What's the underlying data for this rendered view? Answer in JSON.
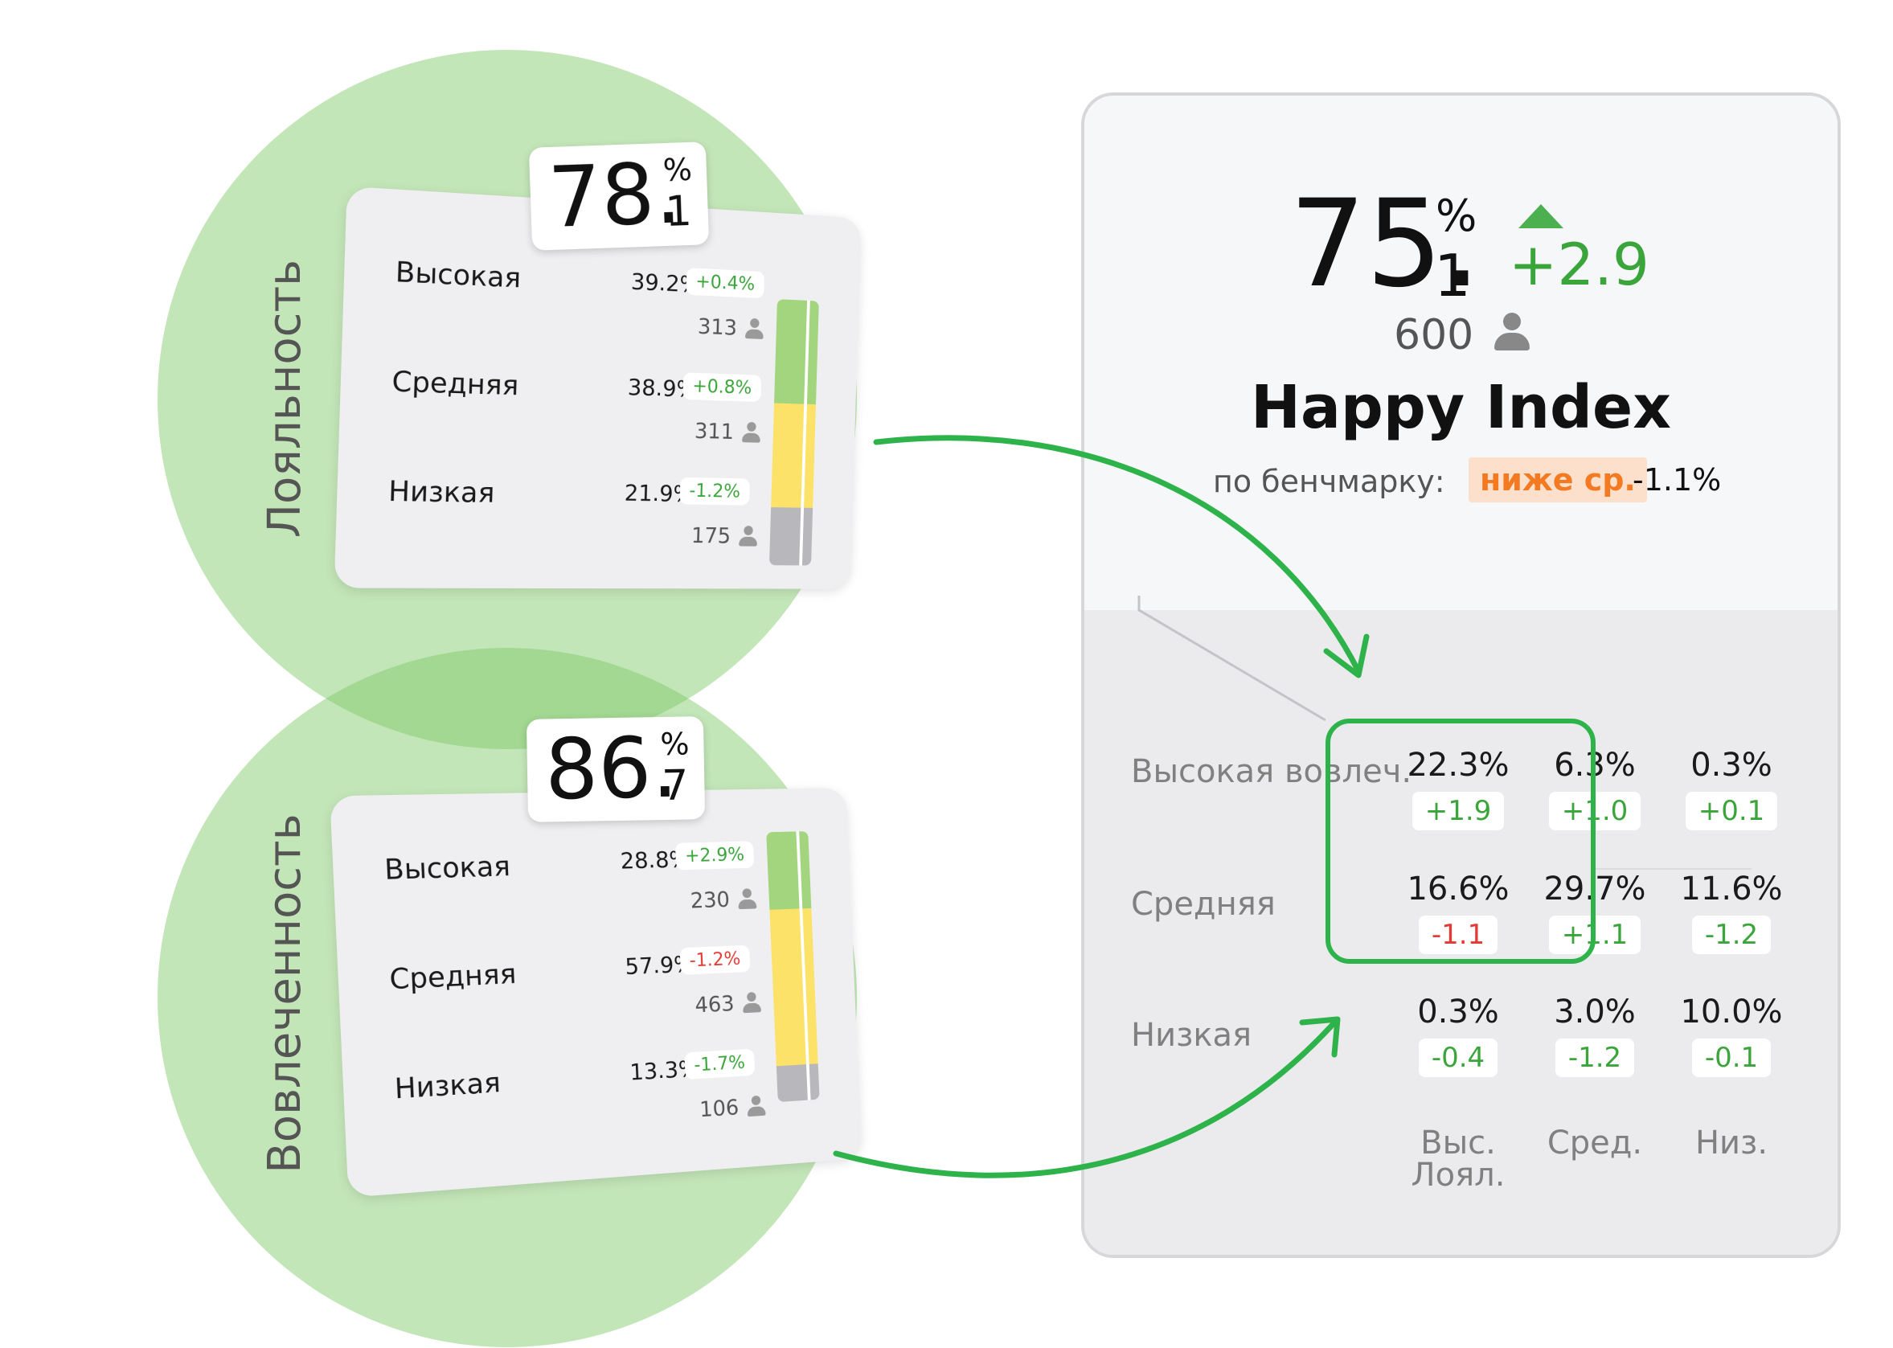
{
  "colors": {
    "circle": "#7ac862",
    "high": "#a3d57f",
    "mid": "#fde26a",
    "low": "#b8b8bc",
    "positive": "#3aa53a",
    "negative": "#e53935",
    "arrow": "#2db34a",
    "benchmark_badge_bg": "#fde0cc",
    "benchmark_badge_text": "#f47a22"
  },
  "loyalty": {
    "axis_label": "Лояльность",
    "score_int": "78.",
    "score_dec": "1",
    "score_unit": "%",
    "rows": [
      {
        "label": "Высокая",
        "pct": "39.2%",
        "delta": "+0.4%",
        "delta_sign": "pos",
        "count": "313",
        "share": 39.2
      },
      {
        "label": "Средняя",
        "pct": "38.9%",
        "delta": "+0.8%",
        "delta_sign": "pos",
        "count": "311",
        "share": 38.9
      },
      {
        "label": "Низкая",
        "pct": "21.9%",
        "delta": "-1.2%",
        "delta_sign": "pos",
        "count": "175",
        "share": 21.9
      }
    ]
  },
  "engagement": {
    "axis_label": "Вовлеченность",
    "score_int": "86.",
    "score_dec": "7",
    "score_unit": "%",
    "rows": [
      {
        "label": "Высокая",
        "pct": "28.8%",
        "delta": "+2.9%",
        "delta_sign": "pos",
        "count": "230",
        "share": 28.8
      },
      {
        "label": "Средняя",
        "pct": "57.9%",
        "delta": "-1.2%",
        "delta_sign": "neg",
        "count": "463",
        "share": 57.9
      },
      {
        "label": "Низкая",
        "pct": "13.3%",
        "delta": "-1.7%",
        "delta_sign": "pos",
        "count": "106",
        "share": 13.3
      }
    ]
  },
  "happy_index": {
    "score_int": "75.",
    "score_dec": "1",
    "score_unit": "%",
    "delta": "+2.9",
    "trend_icon": "arrow-up-icon",
    "respondents": "600",
    "title": "Happy Index",
    "benchmark_label": "по бенчмарку:",
    "benchmark_status": "ниже ср.",
    "benchmark_delta": "-1.1%",
    "matrix": {
      "row_labels": [
        "Высокая вовлеч.",
        "Средняя",
        "Низкая"
      ],
      "col_labels": [
        "Выс. Лоял.",
        "Сред.",
        "Низ."
      ],
      "rows": [
        [
          {
            "pct": "22.3%",
            "delta": "+1.9",
            "sign": "pos"
          },
          {
            "pct": "6.3%",
            "delta": "+1.0",
            "sign": "pos"
          },
          {
            "pct": "0.3%",
            "delta": "+0.1",
            "sign": "pos"
          }
        ],
        [
          {
            "pct": "16.6%",
            "delta": "-1.1",
            "sign": "neg"
          },
          {
            "pct": "29.7%",
            "delta": "+1.1",
            "sign": "pos"
          },
          {
            "pct": "11.6%",
            "delta": "-1.2",
            "sign": "pos"
          }
        ],
        [
          {
            "pct": "0.3%",
            "delta": "-0.4",
            "sign": "pos"
          },
          {
            "pct": "3.0%",
            "delta": "-1.2",
            "sign": "pos"
          },
          {
            "pct": "10.0%",
            "delta": "-0.1",
            "sign": "pos"
          }
        ]
      ]
    }
  }
}
